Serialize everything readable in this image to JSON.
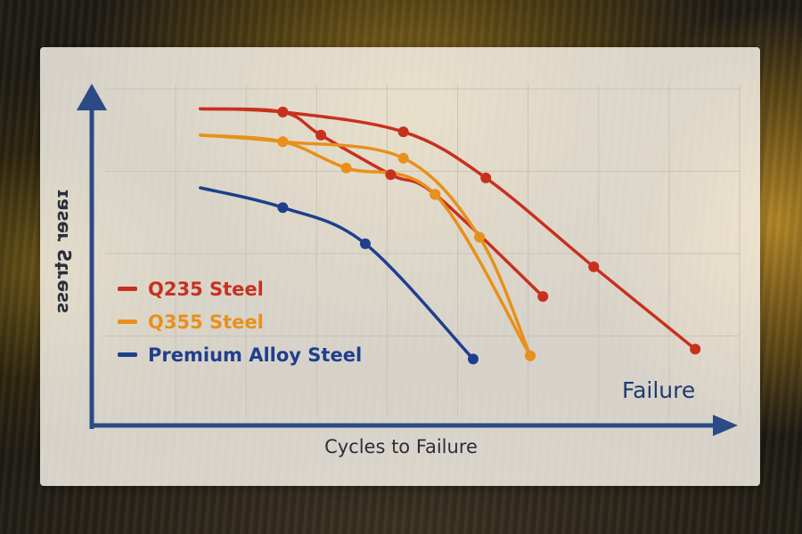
{
  "chart_data": {
    "type": "line",
    "title": "",
    "xlabel": "Cycles to Failure",
    "ylabel": "ssəɹʇS ɹəsɐɪ",
    "annotation": "Failure",
    "x_range": [
      0,
      100
    ],
    "y_range": [
      0,
      100
    ],
    "grid": true,
    "legend_position": "left-middle",
    "series": [
      {
        "name": "Q235 Steel",
        "color": "#c8301e",
        "points": [
          [
            15,
            94
          ],
          [
            28,
            93
          ],
          [
            47,
            87
          ],
          [
            60,
            73
          ],
          [
            77,
            46
          ],
          [
            93,
            21
          ]
        ]
      },
      {
        "name": "Q235 Steel",
        "color": "#c8301e",
        "points": [
          [
            15,
            94
          ],
          [
            28,
            93
          ],
          [
            34,
            86
          ],
          [
            45,
            74
          ],
          [
            52,
            68
          ],
          [
            69,
            37
          ]
        ]
      },
      {
        "name": "Q355 Steel",
        "color": "#e8901c",
        "points": [
          [
            15,
            86
          ],
          [
            28,
            84
          ],
          [
            38,
            76
          ],
          [
            52,
            68
          ],
          [
            67,
            19
          ]
        ]
      },
      {
        "name": "Q355 Steel",
        "color": "#e8901c",
        "points": [
          [
            15,
            86
          ],
          [
            28,
            84
          ],
          [
            47,
            79
          ],
          [
            59,
            55
          ],
          [
            67,
            19
          ]
        ]
      },
      {
        "name": "Premium Alloy Steel",
        "color": "#1f3f8e",
        "points": [
          [
            15,
            70
          ],
          [
            28,
            64
          ],
          [
            41,
            53
          ],
          [
            58,
            18
          ]
        ]
      }
    ]
  },
  "legend": [
    {
      "label": "Q235 Steel",
      "color": "#c8301e"
    },
    {
      "label": "Q355 Steel",
      "color": "#e8901c"
    },
    {
      "label": "Premium Alloy Steel",
      "color": "#1f3f8e"
    }
  ],
  "colors": {
    "axis": "#2c4a86",
    "grid": "#c9c4b6"
  }
}
